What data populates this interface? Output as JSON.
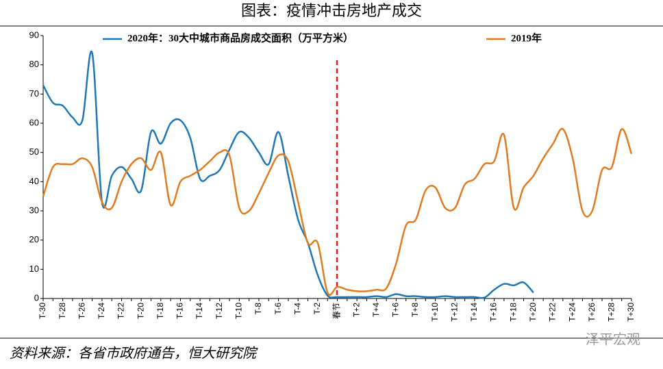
{
  "chart_data": {
    "type": "line",
    "title": "图表：疫情冲击房地产成交",
    "source": "资料来源：各省市政府通告，恒大研究院",
    "watermark": "泽平宏观",
    "categories": [
      "T-30",
      null,
      "T-28",
      null,
      "T-26",
      null,
      "T-24",
      null,
      "T-22",
      null,
      "T-20",
      null,
      "T-18",
      null,
      "T-16",
      null,
      "T-14",
      null,
      "T-12",
      null,
      "T-10",
      null,
      "T-8",
      null,
      "T-6",
      null,
      "T-4",
      null,
      "T-2",
      null,
      "春节",
      null,
      "T+2",
      null,
      "T+4",
      null,
      "T+6",
      null,
      "T+8",
      null,
      "T+10",
      null,
      "T+12",
      null,
      "T+14",
      null,
      "T+16",
      null,
      "T+18",
      null,
      "T+20",
      null,
      "T+22",
      null,
      "T+24",
      null,
      "T+26",
      null,
      "T+28",
      null,
      "T+30"
    ],
    "series": [
      {
        "name": "2020年：30大中城市商品房成交面积（万平方米）",
        "color": "#1f77b4",
        "values": [
          73,
          67,
          66,
          62,
          61,
          84,
          33,
          42,
          45,
          41,
          37,
          57,
          53,
          60,
          61,
          55,
          41,
          42,
          44,
          51,
          57,
          55,
          50,
          46,
          57,
          42,
          27,
          19,
          8,
          1,
          0.5,
          0.5,
          0.5,
          0.5,
          0.8,
          0.5,
          1.5,
          0.8,
          0.8,
          0.5,
          0.5,
          0.8,
          0.5,
          0.5,
          0.5,
          0.3,
          3,
          5,
          4.5,
          5.5,
          2,
          null,
          null,
          null,
          null,
          null,
          null,
          null,
          null,
          null,
          null
        ]
      },
      {
        "name": "2019年",
        "color": "#e07b20",
        "values": [
          35,
          45,
          46,
          46,
          48,
          45,
          33,
          31,
          40,
          46,
          48,
          44,
          50,
          32,
          40,
          42,
          44,
          47,
          50,
          49,
          31,
          30,
          36,
          43,
          49,
          47,
          33,
          19,
          19,
          2,
          4,
          3,
          2.5,
          2.5,
          3,
          3.5,
          12,
          25,
          27,
          37,
          38,
          31,
          31,
          39,
          41,
          46,
          47,
          56,
          31,
          38,
          42,
          48,
          53,
          58,
          48,
          30,
          30,
          44,
          45,
          58,
          49.5
        ]
      }
    ],
    "ylim": [
      0,
      90
    ],
    "yticks": [
      0,
      10,
      20,
      30,
      40,
      50,
      60,
      70,
      80,
      90
    ],
    "grid": false
  }
}
